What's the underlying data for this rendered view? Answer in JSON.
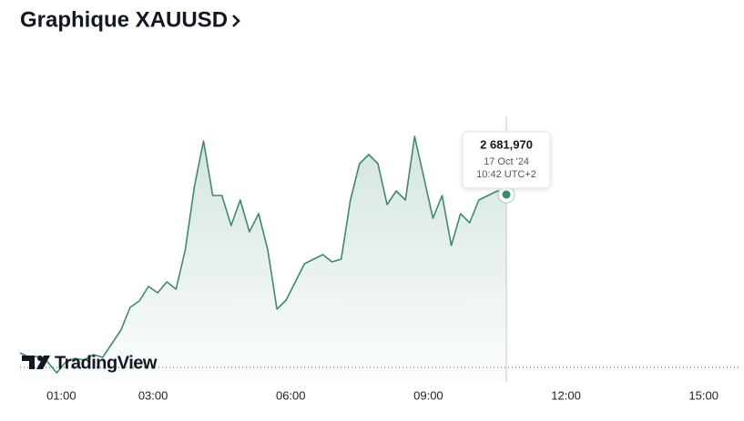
{
  "chart_data": {
    "type": "line",
    "title": "Graphique XAUUSD",
    "watermark": "TradingView",
    "x": [
      0.1,
      0.3,
      0.5,
      0.7,
      0.9,
      1.1,
      1.3,
      1.5,
      1.7,
      1.9,
      2.1,
      2.3,
      2.5,
      2.7,
      2.9,
      3.1,
      3.3,
      3.5,
      3.7,
      3.9,
      4.1,
      4.3,
      4.5,
      4.7,
      4.9,
      5.1,
      5.3,
      5.5,
      5.7,
      5.9,
      6.1,
      6.3,
      6.5,
      6.7,
      6.9,
      7.1,
      7.3,
      7.5,
      7.7,
      7.9,
      8.1,
      8.3,
      8.5,
      8.7,
      8.9,
      9.1,
      9.3,
      9.5,
      9.7,
      9.9,
      10.1,
      10.3,
      10.5,
      10.7
    ],
    "series": [
      {
        "color": "#3d8a6c",
        "values": [
          2668.05,
          2667.65,
          2667.73,
          2667.25,
          2666.29,
          2667.25,
          2667.57,
          2667.41,
          2667.89,
          2667.65,
          2668.85,
          2670.05,
          2672.05,
          2672.61,
          2673.89,
          2673.33,
          2674.29,
          2673.65,
          2677.09,
          2682.69,
          2686.69,
          2681.89,
          2681.89,
          2679.25,
          2681.49,
          2678.69,
          2680.29,
          2677.09,
          2671.89,
          2672.69,
          2674.29,
          2675.89,
          2676.29,
          2676.69,
          2676.05,
          2676.29,
          2681.49,
          2684.69,
          2685.49,
          2684.69,
          2681.09,
          2682.29,
          2681.49,
          2687.09,
          2683.49,
          2679.89,
          2681.89,
          2677.49,
          2680.29,
          2679.49,
          2681.49,
          2681.89,
          2682.29,
          2681.97
        ],
        "value_labels": [
          null,
          null,
          null,
          null,
          null,
          null,
          null,
          null,
          null,
          null,
          null,
          null,
          null,
          null,
          null,
          null,
          null,
          null,
          null,
          null,
          null,
          null,
          null,
          null,
          null,
          null,
          null,
          null,
          null,
          null,
          null,
          null,
          null,
          null,
          null,
          null,
          null,
          null,
          null,
          null,
          null,
          null,
          null,
          null,
          null,
          null,
          null,
          null,
          null,
          null,
          null,
          null,
          null,
          "2 681,970"
        ]
      }
    ],
    "tooltip": {
      "date": "17 Oct '24",
      "time": "10:42 UTC+2"
    },
    "reference_line": 2666.77,
    "xlim": [
      0.1,
      15.8
    ],
    "ylim": [
      2665.49,
      2691.09
    ],
    "xticks": [
      {
        "value": 1,
        "label": "01:00"
      },
      {
        "value": 3,
        "label": "03:00"
      },
      {
        "value": 6,
        "label": "06:00"
      },
      {
        "value": 9,
        "label": "09:00"
      },
      {
        "value": 12,
        "label": "12:00"
      },
      {
        "value": 15,
        "label": "15:00"
      }
    ]
  }
}
